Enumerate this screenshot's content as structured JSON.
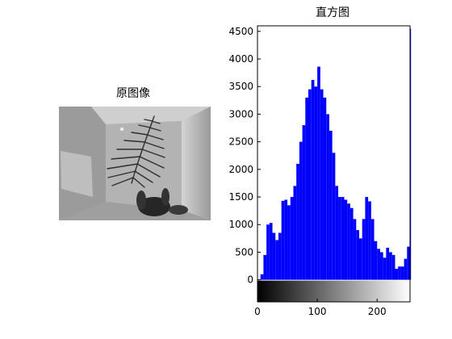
{
  "left_panel": {
    "title": "原图像"
  },
  "chart_data": {
    "type": "bar",
    "title": "直方图",
    "xlabel": "",
    "ylabel": "",
    "xlim": [
      0,
      255
    ],
    "ylim": [
      -400,
      4600
    ],
    "x_ticks": [
      0,
      100,
      200
    ],
    "y_ticks": [
      0,
      500,
      1000,
      1500,
      2000,
      2500,
      3000,
      3500,
      4000,
      4500
    ],
    "bar_color": "#0000ff",
    "colorbar": "grayscale 0-255",
    "grid": false,
    "series": [
      {
        "x": [
          0,
          5,
          10,
          15,
          20,
          25,
          30,
          35,
          40,
          45,
          50,
          55,
          60,
          65,
          70,
          75,
          80,
          85,
          90,
          95,
          100,
          105,
          110,
          115,
          120,
          125,
          130,
          135,
          140,
          145,
          150,
          155,
          160,
          165,
          170,
          175,
          180,
          185,
          190,
          195,
          200,
          205,
          210,
          215,
          220,
          225,
          230,
          235,
          240,
          245,
          250,
          255
        ],
        "values": [
          0,
          100,
          450,
          1000,
          1030,
          850,
          720,
          850,
          1430,
          1450,
          1350,
          1500,
          1700,
          2100,
          2500,
          2800,
          3300,
          3450,
          3620,
          3500,
          3860,
          3450,
          3300,
          3000,
          2700,
          2300,
          1700,
          1500,
          1500,
          1450,
          1380,
          1300,
          1100,
          900,
          750,
          1100,
          1500,
          1420,
          1100,
          700,
          560,
          500,
          400,
          580,
          500,
          450,
          200,
          240,
          240,
          380,
          600,
          4550
        ]
      }
    ]
  }
}
